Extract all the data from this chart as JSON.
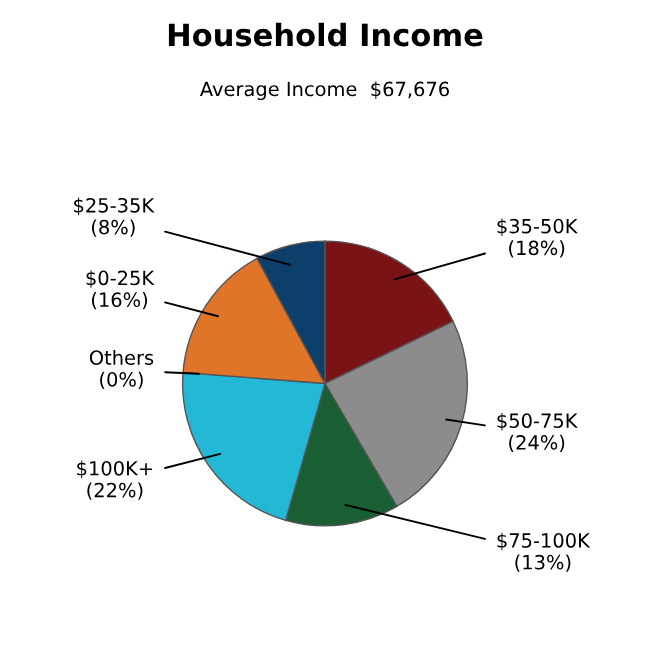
{
  "chart_data": {
    "type": "pie",
    "title": "Household Income",
    "subtitle": "Average Income  $67,676",
    "categories": [
      "$35-50K",
      "$50-75K",
      "$75-100K",
      "$100K+",
      "Others",
      "$0-25K",
      "$25-35K"
    ],
    "values": [
      18,
      24,
      13,
      22,
      0,
      16,
      8
    ],
    "value_labels": [
      "(18%)",
      "(24%)",
      "(13%)",
      "(22%)",
      "(0%)",
      "(16%)",
      "(8%)"
    ],
    "colors": [
      "#7a1315",
      "#8c8c8c",
      "#1a5e34",
      "#22b8d6",
      "#c0c0c0",
      "#e07428",
      "#0d3f6b"
    ],
    "legend": false
  }
}
